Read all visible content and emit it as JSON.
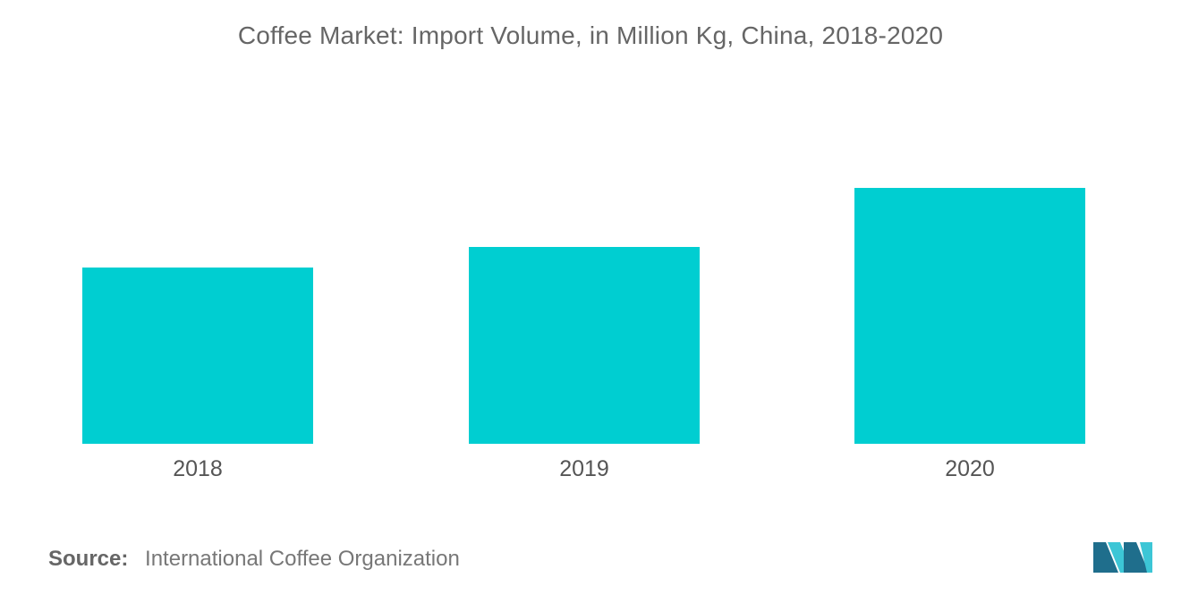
{
  "chart_data": {
    "type": "bar",
    "title": "Coffee Market: Import Volume, in Million Kg, China, 2018-2020",
    "xlabel": "",
    "ylabel": "",
    "categories": [
      "2018",
      "2019",
      "2020"
    ],
    "values": [
      197,
      220,
      286
    ],
    "ylim": [
      0,
      300
    ],
    "grid": false,
    "legend": "none"
  },
  "source": {
    "label": "Source:",
    "text": "International Coffee Organization"
  },
  "colors": {
    "bar": "#00CED1",
    "logo_dark": "#1f6e8c",
    "logo_light": "#3cc6d6"
  },
  "logo": {
    "icon": "brand-logo-icon"
  }
}
